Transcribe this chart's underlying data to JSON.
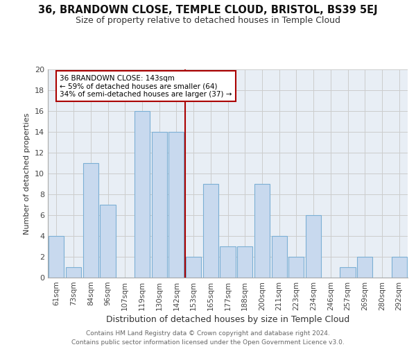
{
  "title": "36, BRANDOWN CLOSE, TEMPLE CLOUD, BRISTOL, BS39 5EJ",
  "subtitle": "Size of property relative to detached houses in Temple Cloud",
  "xlabel": "Distribution of detached houses by size in Temple Cloud",
  "ylabel": "Number of detached properties",
  "footer_line1": "Contains HM Land Registry data © Crown copyright and database right 2024.",
  "footer_line2": "Contains public sector information licensed under the Open Government Licence v3.0.",
  "categories": [
    "61sqm",
    "73sqm",
    "84sqm",
    "96sqm",
    "107sqm",
    "119sqm",
    "130sqm",
    "142sqm",
    "153sqm",
    "165sqm",
    "177sqm",
    "188sqm",
    "200sqm",
    "211sqm",
    "223sqm",
    "234sqm",
    "246sqm",
    "257sqm",
    "269sqm",
    "280sqm",
    "292sqm"
  ],
  "values": [
    4,
    1,
    11,
    7,
    0,
    16,
    14,
    14,
    2,
    9,
    3,
    3,
    9,
    4,
    2,
    6,
    0,
    1,
    2,
    0,
    2
  ],
  "bar_color": "#c8d9ee",
  "bar_edge_color": "#7bafd4",
  "property_line_index": 7.5,
  "property_line_color": "#aa0000",
  "annotation_text": "36 BRANDOWN CLOSE: 143sqm\n← 59% of detached houses are smaller (64)\n34% of semi-detached houses are larger (37) →",
  "annotation_box_color": "#aa0000",
  "ylim": [
    0,
    20
  ],
  "yticks": [
    0,
    2,
    4,
    6,
    8,
    10,
    12,
    14,
    16,
    18,
    20
  ],
  "grid_color": "#cccccc",
  "bg_color": "#e8eef5",
  "title_fontsize": 10.5,
  "subtitle_fontsize": 9,
  "ylabel_fontsize": 8,
  "xlabel_fontsize": 9,
  "tick_fontsize": 7.5,
  "footer_fontsize": 6.5
}
